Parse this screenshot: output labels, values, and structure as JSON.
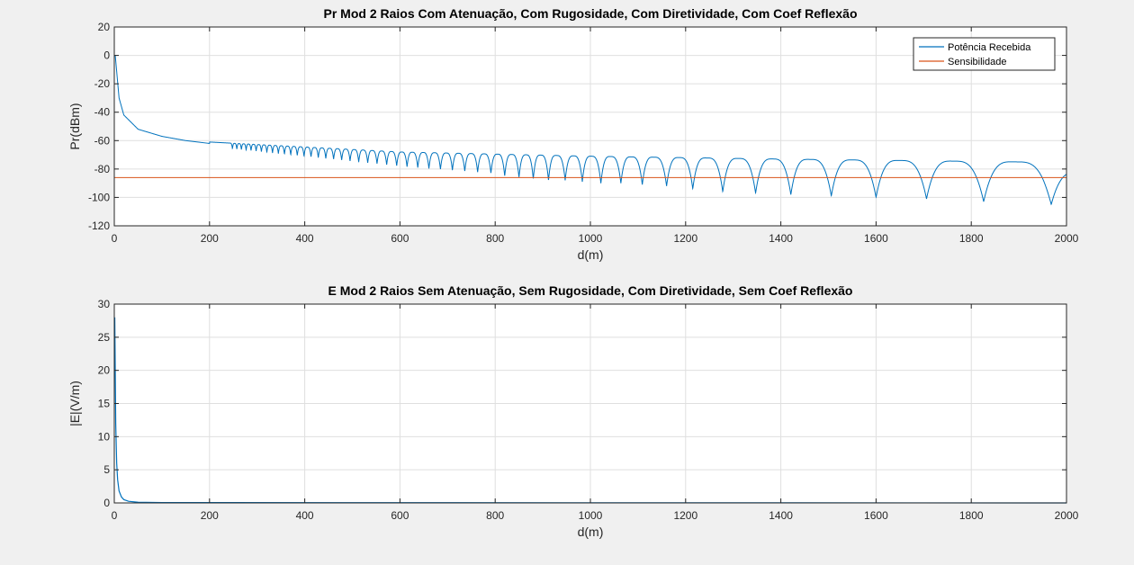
{
  "chart_data": [
    {
      "type": "line",
      "title": "Pr Mod 2 Raios Com Atenuação, Com Rugosidade, Com Diretividade, Com Coef Reflexão",
      "xlabel": "d(m)",
      "ylabel": "Pr(dBm)",
      "xlim": [
        0,
        2000
      ],
      "ylim": [
        -120,
        20
      ],
      "xticks": [
        0,
        200,
        400,
        600,
        800,
        1000,
        1200,
        1400,
        1600,
        1800,
        2000
      ],
      "yticks": [
        -120,
        -100,
        -80,
        -60,
        -40,
        -20,
        0,
        20
      ],
      "grid": true,
      "legend_position": "top-right",
      "series": [
        {
          "name": "Potência Recebida",
          "color": "#0072bd",
          "shape": "two-ray interference: smooth decay from ~0 dBm near d=0 to ~-62 at d=200, then oscillation with nulls whose spacing grows with distance",
          "x": [
            2,
            10,
            20,
            50,
            100,
            150,
            200,
            300,
            400,
            600,
            800,
            1000,
            1200,
            1400,
            1600,
            1800,
            2000
          ],
          "values": [
            0,
            -30,
            -42,
            -52,
            -57,
            -60,
            -62,
            -65,
            -68,
            -70,
            -71,
            -72,
            -73,
            -73.5,
            -74,
            -75,
            -80
          ],
          "upper_envelope": [
            [
              200,
              -61
            ],
            [
              600,
              -68
            ],
            [
              1000,
              -71
            ],
            [
              1400,
              -73
            ],
            [
              1900,
              -75
            ]
          ],
          "null_positions": [
            820,
            850,
            880,
            912,
            947,
            983,
            1022,
            1064,
            1109,
            1160,
            1215,
            1278,
            1347,
            1421,
            1506,
            1600,
            1706,
            1826,
            1968
          ],
          "null_depths": [
            -85,
            -86,
            -87,
            -88,
            -88,
            -89,
            -90,
            -90,
            -91,
            -92,
            -94,
            -96,
            -97,
            -98,
            -99,
            -100,
            -101,
            -103,
            -105
          ]
        },
        {
          "name": "Sensibilidade",
          "color": "#d95319",
          "x": [
            0,
            2000
          ],
          "values": [
            -86,
            -86
          ]
        }
      ]
    },
    {
      "type": "line",
      "title": "E Mod 2 Raios Sem Atenuação, Sem Rugosidade, Com Diretividade, Sem Coef Reflexão",
      "xlabel": "d(m)",
      "ylabel": "|E|(V/m)",
      "xlim": [
        0,
        2000
      ],
      "ylim": [
        0,
        30
      ],
      "xticks": [
        0,
        200,
        400,
        600,
        800,
        1000,
        1200,
        1400,
        1600,
        1800,
        2000
      ],
      "yticks": [
        0,
        5,
        10,
        15,
        20,
        25,
        30
      ],
      "grid": true,
      "series": [
        {
          "color": "#0072bd",
          "x": [
            1,
            2,
            3,
            5,
            7,
            10,
            15,
            20,
            30,
            50,
            100,
            2000
          ],
          "values": [
            28,
            20,
            12,
            6,
            3.5,
            1.8,
            0.9,
            0.5,
            0.25,
            0.1,
            0.05,
            0
          ]
        }
      ]
    }
  ]
}
